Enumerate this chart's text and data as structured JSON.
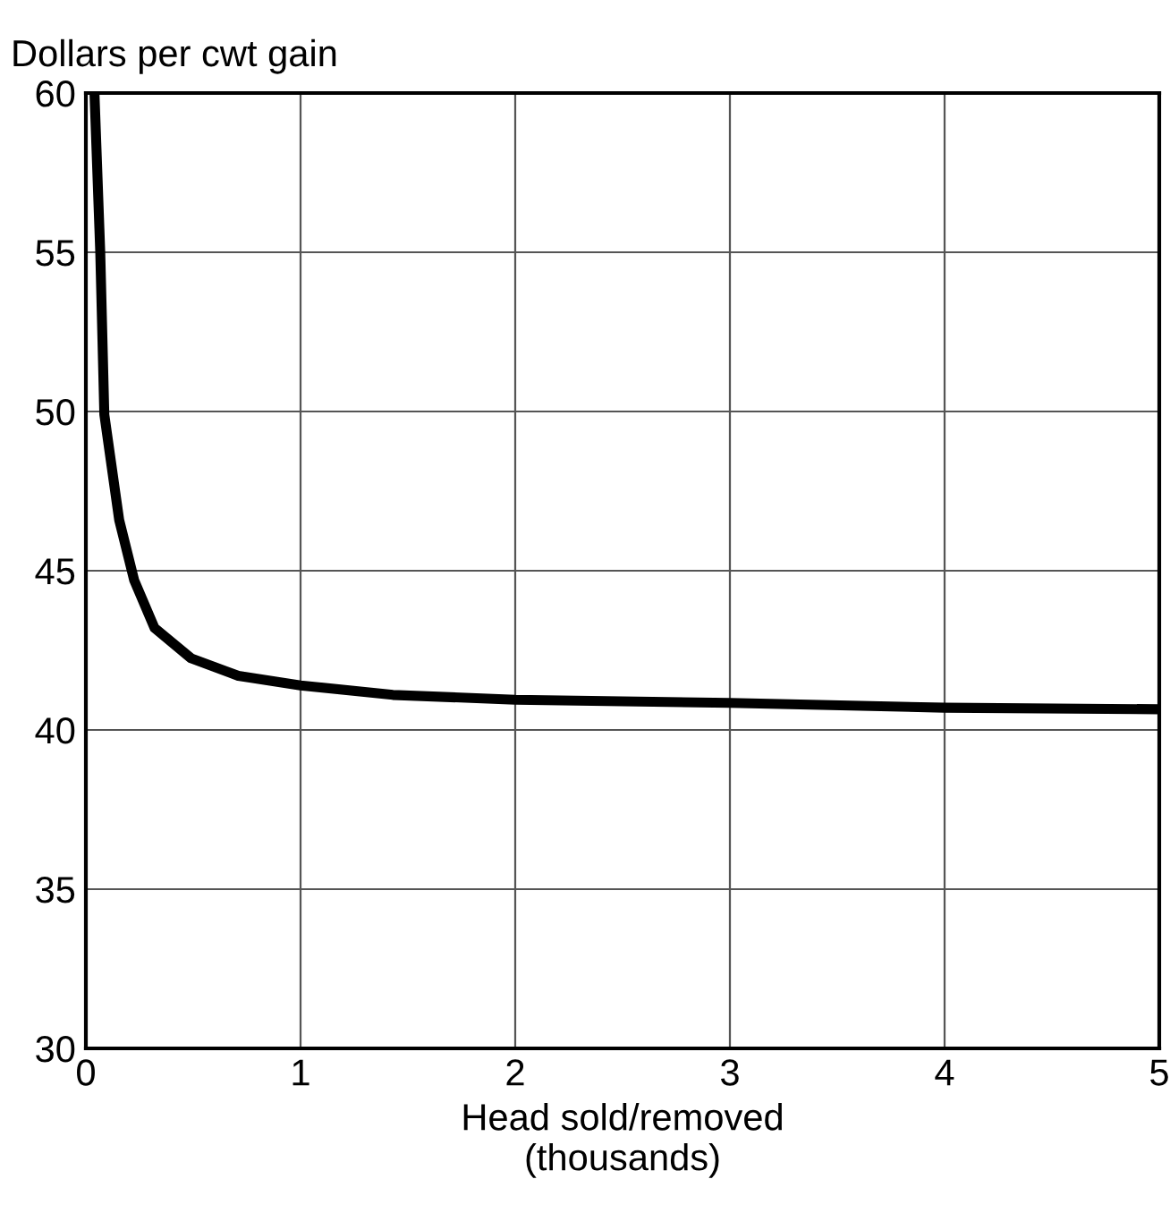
{
  "chart_data": {
    "type": "line",
    "ylabel": "Dollars per cwt gain",
    "xlabel": "Head sold/removed\n(thousands)",
    "series": [
      {
        "color": "#000000",
        "x": [
          0.04,
          0.067,
          0.086,
          0.155,
          0.225,
          0.32,
          0.49,
          0.71,
          1.0,
          1.43,
          2.0,
          3.0,
          4.0,
          5.0
        ],
        "values": [
          60,
          55,
          49.9,
          46.6,
          44.7,
          43.2,
          42.25,
          41.7,
          41.4,
          41.1,
          40.95,
          40.85,
          40.7,
          40.65
        ]
      }
    ],
    "xlim": [
      0,
      5
    ],
    "xticks": [
      0,
      1,
      2,
      3,
      4,
      5
    ],
    "ylim": [
      30,
      60
    ],
    "yticks": [
      30,
      35,
      40,
      45,
      50,
      55,
      60
    ],
    "grid": true,
    "marker": "none",
    "line_style": "solid",
    "legend": false
  }
}
